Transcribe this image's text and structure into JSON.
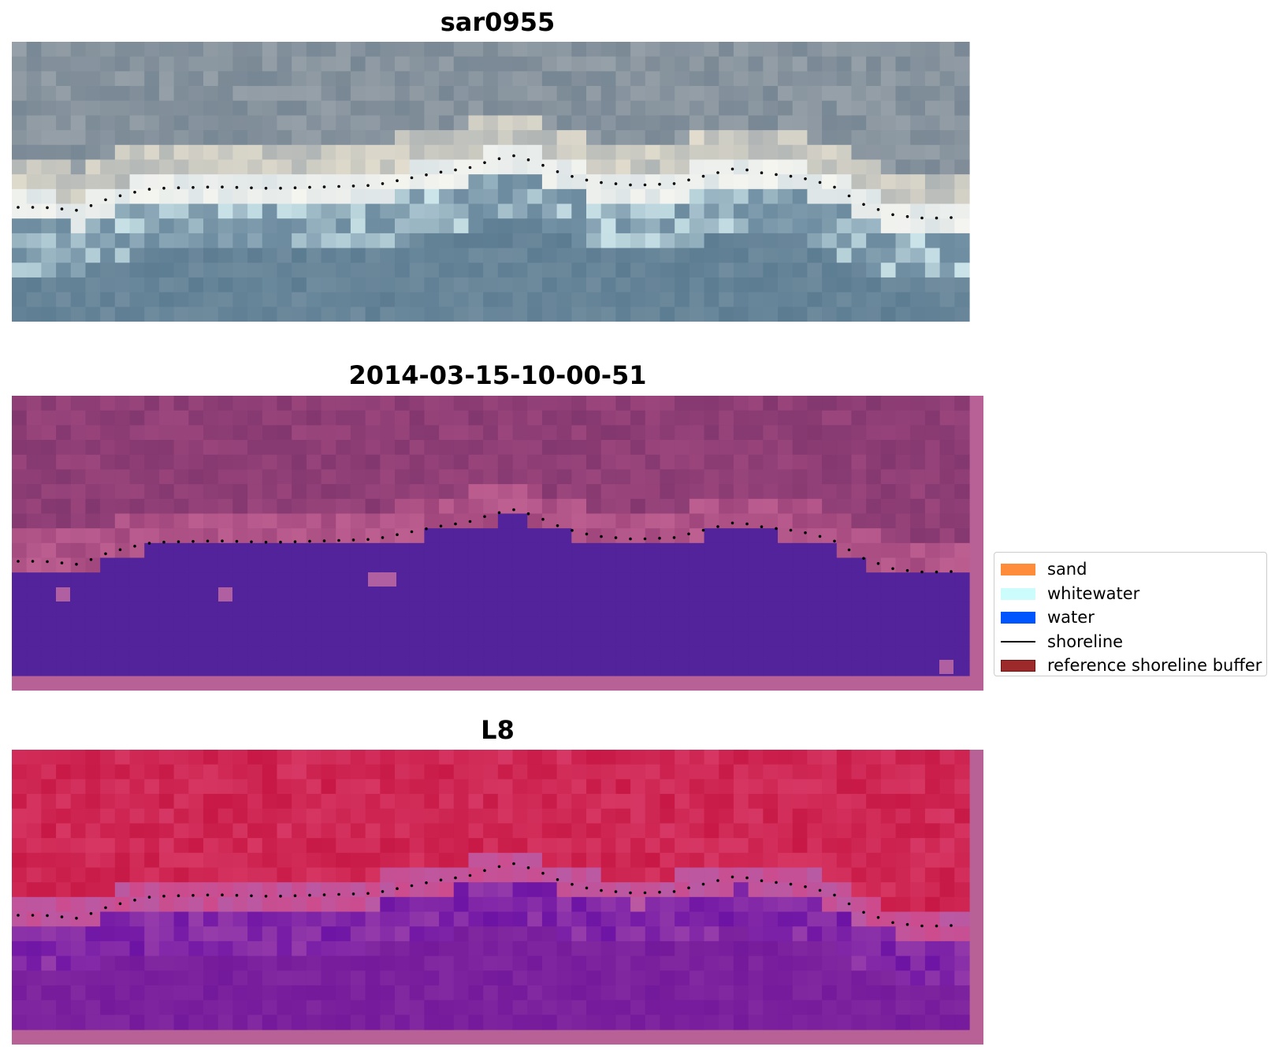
{
  "panels": [
    {
      "title": "sar0955",
      "kind": "rgb"
    },
    {
      "title": "2014-03-15-10-00-51",
      "kind": "classified"
    },
    {
      "title": "L8",
      "kind": "index"
    }
  ],
  "legend": {
    "items": [
      {
        "label": "sand",
        "type": "patch",
        "color": "#ff8c3a"
      },
      {
        "label": "whitewater",
        "type": "patch",
        "color": "#ccfcfc"
      },
      {
        "label": "water",
        "type": "patch",
        "color": "#0055ff"
      },
      {
        "label": "shoreline",
        "type": "line",
        "color": "#000000"
      },
      {
        "label": "reference shoreline buffer",
        "type": "patch",
        "color": "#9c2a2a"
      }
    ]
  },
  "colors": {
    "classified_water": "#52239a",
    "classified_land": "#913d79",
    "buffer_border": "#b86196",
    "index_land": "#c21f4f",
    "index_water": "#7b2198",
    "rgb_water": "#5e7f95",
    "rgb_land": "#8f9ba3"
  }
}
